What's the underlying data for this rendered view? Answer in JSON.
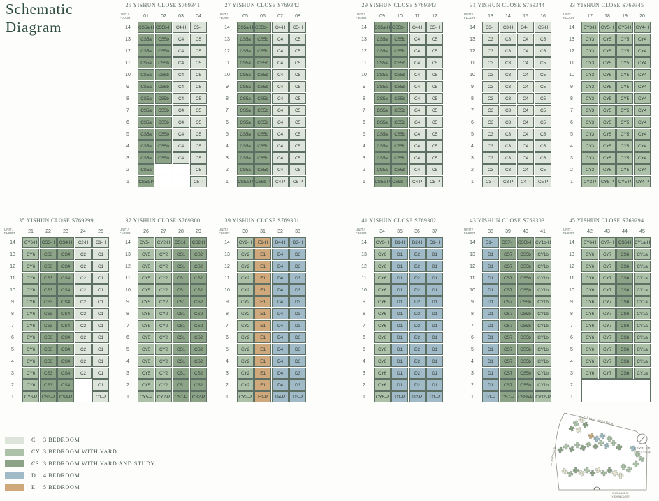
{
  "title": {
    "line1": "Schematic",
    "line2": "Diagram"
  },
  "unit_floor_label": [
    "UNIT /",
    "FLOOR"
  ],
  "floors": [
    "14",
    "13",
    "12",
    "11",
    "10",
    "9",
    "8",
    "7",
    "6",
    "5",
    "4",
    "3",
    "2",
    "1"
  ],
  "palette": {
    "c": "#dde5da",
    "cy": "#adc1a9",
    "cs": "#8da388",
    "d": "#a0bac8",
    "e": "#cfa87c"
  },
  "blocks": [
    {
      "address": "25 YISHUN CLOSE S769341",
      "units": [
        "01",
        "02",
        "03",
        "04"
      ],
      "grid": [
        [
          "CS5a-H",
          "CS5b-H",
          "C4-H",
          "C5-H"
        ],
        [
          "CS5a",
          "CS5b",
          "C4",
          "C5"
        ],
        [
          "CS5a",
          "CS5b",
          "C4",
          "C5"
        ],
        [
          "CS5a",
          "CS5b",
          "C4",
          "C5"
        ],
        [
          "CS5a",
          "CS5b",
          "C4",
          "C5"
        ],
        [
          "CS5a",
          "CS5b",
          "C4",
          "C5"
        ],
        [
          "CS5a",
          "CS5b",
          "C4",
          "C5"
        ],
        [
          "CS5a",
          "CS5b",
          "C4",
          "C5"
        ],
        [
          "CS5a",
          "CS5b",
          "C4",
          "C5"
        ],
        [
          "CS5a",
          "CS5b",
          "C4",
          "C5"
        ],
        [
          "CS5a",
          "CS5b",
          "C4",
          "C5"
        ],
        [
          "CS5a",
          "CS5b",
          "C4",
          "C5"
        ],
        [
          "CS5a",
          "",
          "",
          "C5"
        ],
        [
          "CS5a-P",
          "",
          "",
          "C5-P"
        ]
      ]
    },
    {
      "address": "27 YISHUN CLOSE S769342",
      "units": [
        "05",
        "06",
        "07",
        "08"
      ],
      "grid": [
        [
          "CS5a-H",
          "CS5b-H",
          "C4-H",
          "C5-H"
        ],
        [
          "CS5a",
          "CS5b",
          "C4",
          "C5"
        ],
        [
          "CS5a",
          "CS5b",
          "C4",
          "C5"
        ],
        [
          "CS5a",
          "CS5b",
          "C4",
          "C5"
        ],
        [
          "CS5a",
          "CS5b",
          "C4",
          "C5"
        ],
        [
          "CS5a",
          "CS5b",
          "C4",
          "C5"
        ],
        [
          "CS5a",
          "CS5b",
          "C4",
          "C5"
        ],
        [
          "CS5a",
          "CS5b",
          "C4",
          "C5"
        ],
        [
          "CS5a",
          "CS5b",
          "C4",
          "C5"
        ],
        [
          "CS5a",
          "CS5b",
          "C4",
          "C5"
        ],
        [
          "CS5a",
          "CS5b",
          "C4",
          "C5"
        ],
        [
          "CS5a",
          "CS5b",
          "C4",
          "C5"
        ],
        [
          "CS5a",
          "CS5b",
          "C4",
          "C5"
        ],
        [
          "CS5a-P",
          "CS5b-P",
          "C4-P",
          "C5-P"
        ]
      ]
    },
    {
      "address": "29 YISHUN CLOSE S769343",
      "units": [
        "09",
        "10",
        "11",
        "12"
      ],
      "grid": [
        [
          "CS5a-H",
          "CS5b-H",
          "C4-H",
          "C5-H"
        ],
        [
          "CS5a",
          "CS5b",
          "C4",
          "C5"
        ],
        [
          "CS5a",
          "CS5b",
          "C4",
          "C5"
        ],
        [
          "CS5a",
          "CS5b",
          "C4",
          "C5"
        ],
        [
          "CS5a",
          "CS5b",
          "C4",
          "C5"
        ],
        [
          "CS5a",
          "CS5b",
          "C4",
          "C5"
        ],
        [
          "CS5a",
          "CS5b",
          "C4",
          "C5"
        ],
        [
          "CS5a",
          "CS5b",
          "C4",
          "C5"
        ],
        [
          "CS5a",
          "CS5b",
          "C4",
          "C5"
        ],
        [
          "CS5a",
          "CS5b",
          "C4",
          "C5"
        ],
        [
          "CS5a",
          "CS5b",
          "C4",
          "C5"
        ],
        [
          "CS5a",
          "CS5b",
          "C4",
          "C5"
        ],
        [
          "CS5a",
          "CS5b",
          "C4",
          "C5"
        ],
        [
          "CS5a-P",
          "CS5b-P",
          "C4-P",
          "C5-P"
        ]
      ]
    },
    {
      "address": "31 YISHUN CLOSE S769344",
      "units": [
        "13",
        "14",
        "15",
        "16"
      ],
      "grid": [
        [
          "C3-H",
          "C3-H",
          "C4-H",
          "C5-H"
        ],
        [
          "C3",
          "C3",
          "C4",
          "C5"
        ],
        [
          "C3",
          "C3",
          "C4",
          "C5"
        ],
        [
          "C3",
          "C3",
          "C4",
          "C5"
        ],
        [
          "C3",
          "C3",
          "C4",
          "C5"
        ],
        [
          "C3",
          "C3",
          "C4",
          "C5"
        ],
        [
          "C3",
          "C3",
          "C4",
          "C5"
        ],
        [
          "C3",
          "C3",
          "C4",
          "C5"
        ],
        [
          "C3",
          "C3",
          "C4",
          "C5"
        ],
        [
          "C3",
          "C3",
          "C4",
          "C5"
        ],
        [
          "C3",
          "C3",
          "C4",
          "C5"
        ],
        [
          "C3",
          "C3",
          "C4",
          "C5"
        ],
        [
          "C3",
          "C3",
          "C4",
          "C5"
        ],
        [
          "C3-P",
          "C3-P",
          "C4-P",
          "C5-P"
        ]
      ]
    },
    {
      "address": "33 YISHUN CLOSE S769345",
      "units": [
        "17",
        "18",
        "19",
        "20"
      ],
      "grid": [
        [
          "CY3-H",
          "CY5-H",
          "CY5-H",
          "CY4-H"
        ],
        [
          "CY3",
          "CY5",
          "CY5",
          "CY4"
        ],
        [
          "CY3",
          "CY5",
          "CY5",
          "CY4"
        ],
        [
          "CY3",
          "CY5",
          "CY5",
          "CY4"
        ],
        [
          "CY3",
          "CY5",
          "CY5",
          "CY4"
        ],
        [
          "CY3",
          "CY5",
          "CY5",
          "CY4"
        ],
        [
          "CY3",
          "CY5",
          "CY5",
          "CY4"
        ],
        [
          "CY3",
          "CY5",
          "CY5",
          "CY4"
        ],
        [
          "CY3",
          "CY5",
          "CY5",
          "CY4"
        ],
        [
          "CY3",
          "CY5",
          "CY5",
          "CY4"
        ],
        [
          "CY3",
          "CY5",
          "CY5",
          "CY4"
        ],
        [
          "CY3",
          "CY5",
          "CY5",
          "CY4"
        ],
        [
          "CY3",
          "CY5",
          "CY5",
          "CY4"
        ],
        [
          "CY3-P",
          "CY5-P",
          "CY5-P",
          "CY4-P"
        ]
      ]
    },
    {
      "address": "35 YISHUN CLOSE S769299",
      "units": [
        "21",
        "22",
        "23",
        "24",
        "25"
      ],
      "grid": [
        [
          "CY6-H",
          "CS3-H",
          "CS4-H",
          "C2-H",
          "C1-H"
        ],
        [
          "CY6",
          "CS3",
          "CS4",
          "C2",
          "C1"
        ],
        [
          "CY6",
          "CS3",
          "CS4",
          "C2",
          "C1"
        ],
        [
          "CY6",
          "CS3",
          "CS4",
          "C2",
          "C1"
        ],
        [
          "CY6",
          "CS3",
          "CS4",
          "C2",
          "C1"
        ],
        [
          "CY6",
          "CS3",
          "CS4",
          "C2",
          "C1"
        ],
        [
          "CY6",
          "CS3",
          "CS4",
          "C2",
          "C1"
        ],
        [
          "CY6",
          "CS3",
          "CS4",
          "C2",
          "C1"
        ],
        [
          "CY6",
          "CS3",
          "CS4",
          "C2",
          "C1"
        ],
        [
          "CY6",
          "CS3",
          "CS4",
          "C2",
          "C1"
        ],
        [
          "CY6",
          "CS3",
          "CS4",
          "C2",
          "C1"
        ],
        [
          "CY6",
          "CS3",
          "CS4",
          "C2",
          "C1"
        ],
        [
          "CY6",
          "CS3",
          "CS4",
          "",
          "C1"
        ],
        [
          "CY6-P",
          "CS3-P",
          "CS4-P",
          "",
          "C1-P"
        ]
      ]
    },
    {
      "address": "37 YISHUN CLOSE S769300",
      "units": [
        "26",
        "27",
        "28",
        "29"
      ],
      "grid": [
        [
          "CY5-H",
          "CY2-H",
          "CS1-H",
          "CS2-H"
        ],
        [
          "CY5",
          "CY2",
          "CS1",
          "CS2"
        ],
        [
          "CY5",
          "CY2",
          "CS1",
          "CS2"
        ],
        [
          "CY5",
          "CY2",
          "CS1",
          "CS2"
        ],
        [
          "CY5",
          "CY2",
          "CS1",
          "CS2"
        ],
        [
          "CY5",
          "CY2",
          "CS1",
          "CS2"
        ],
        [
          "CY5",
          "CY2",
          "CS1",
          "CS2"
        ],
        [
          "CY5",
          "CY2",
          "CS1",
          "CS2"
        ],
        [
          "CY5",
          "CY2",
          "CS1",
          "CS2"
        ],
        [
          "CY5",
          "CY2",
          "CS1",
          "CS2"
        ],
        [
          "CY5",
          "CY2",
          "CS1",
          "CS2"
        ],
        [
          "CY5",
          "CY2",
          "CS1",
          "CS2"
        ],
        [
          "CY5",
          "CY2",
          "CS1",
          "CS2"
        ],
        [
          "CY5-P",
          "CY2-P",
          "CS1-P",
          "CS2-P"
        ]
      ]
    },
    {
      "address": "39 YISHUN CLOSE S769301",
      "units": [
        "30",
        "31",
        "32",
        "33"
      ],
      "grid": [
        [
          "CY2-H",
          "E1-H",
          "D4-H",
          "D3-H"
        ],
        [
          "CY2",
          "E1",
          "D4",
          "D3"
        ],
        [
          "CY2",
          "E1",
          "D4",
          "D3"
        ],
        [
          "CY2",
          "E1",
          "D4",
          "D3"
        ],
        [
          "CY2",
          "E1",
          "D4",
          "D3"
        ],
        [
          "CY2",
          "E1",
          "D4",
          "D3"
        ],
        [
          "CY2",
          "E1",
          "D4",
          "D3"
        ],
        [
          "CY2",
          "E1",
          "D4",
          "D3"
        ],
        [
          "CY2",
          "E1",
          "D4",
          "D3"
        ],
        [
          "CY2",
          "E1",
          "D4",
          "D3"
        ],
        [
          "CY2",
          "E1",
          "D4",
          "D3"
        ],
        [
          "CY2",
          "E1",
          "D4",
          "D3"
        ],
        [
          "CY2",
          "E1",
          "D4",
          "D3"
        ],
        [
          "CY2-P",
          "E1-P",
          "D4-P",
          "D3-P"
        ]
      ]
    },
    {
      "address": "41 YISHUN CLOSE S769302",
      "units": [
        "34",
        "35",
        "36",
        "37"
      ],
      "grid": [
        [
          "CY6-H",
          "D1-H",
          "D2-H",
          "D1-H"
        ],
        [
          "CY6",
          "D1",
          "D2",
          "D1"
        ],
        [
          "CY6",
          "D1",
          "D2",
          "D1"
        ],
        [
          "CY6",
          "D1",
          "D2",
          "D1"
        ],
        [
          "CY6",
          "D1",
          "D2",
          "D1"
        ],
        [
          "CY6",
          "D1",
          "D2",
          "D1"
        ],
        [
          "CY6",
          "D1",
          "D2",
          "D1"
        ],
        [
          "CY6",
          "D1",
          "D2",
          "D1"
        ],
        [
          "CY6",
          "D1",
          "D2",
          "D1"
        ],
        [
          "CY6",
          "D1",
          "D2",
          "D1"
        ],
        [
          "CY6",
          "D1",
          "D2",
          "D1"
        ],
        [
          "CY6",
          "D1",
          "D2",
          "D1"
        ],
        [
          "CY6",
          "D1",
          "D2",
          "D1"
        ],
        [
          "CY6-P",
          "D1-P",
          "D2-P",
          "D1-P"
        ]
      ]
    },
    {
      "address": "43 YISHUN CLOSE S769303",
      "units": [
        "38",
        "39",
        "40",
        "41"
      ],
      "grid": [
        [
          "D1-H",
          "CS7-H",
          "CS5b-H",
          "CY1b-H"
        ],
        [
          "D1",
          "CS7",
          "CS5b",
          "CY1b"
        ],
        [
          "D1",
          "CS7",
          "CS5b",
          "CY1b"
        ],
        [
          "D1",
          "CS7",
          "CS5b",
          "CY1b"
        ],
        [
          "D1",
          "CS7",
          "CS5b",
          "CY1b"
        ],
        [
          "D1",
          "CS7",
          "CS5b",
          "CY1b"
        ],
        [
          "D1",
          "CS7",
          "CS5b",
          "CY1b"
        ],
        [
          "D1",
          "CS7",
          "CS5b",
          "CY1b"
        ],
        [
          "D1",
          "CS7",
          "CS5b",
          "CY1b"
        ],
        [
          "D1",
          "CS7",
          "CS5b",
          "CY1b"
        ],
        [
          "D1",
          "CS7",
          "CS5b",
          "CY1b"
        ],
        [
          "D1",
          "CS7",
          "CS5b",
          "CY1b"
        ],
        [
          "D1",
          "CS7",
          "CS5b",
          "CY1b"
        ],
        [
          "D1-P",
          "CS7-P",
          "CS5b-P",
          "CY1b-P"
        ]
      ]
    },
    {
      "address": "45 YISHUN CLOSE S769294",
      "units": [
        "42",
        "43",
        "44",
        "45"
      ],
      "blank_box": true,
      "grid": [
        [
          "CY6-H",
          "CY7-H",
          "CS6-H",
          "CY1a-H"
        ],
        [
          "CY6",
          "CY7",
          "CS6",
          "CY1a"
        ],
        [
          "CY6",
          "CY7",
          "CS6",
          "CY1a"
        ],
        [
          "CY6",
          "CY7",
          "CS6",
          "CY1a"
        ],
        [
          "CY6",
          "CY7",
          "CS6",
          "CY1a"
        ],
        [
          "CY6",
          "CY7",
          "CS6",
          "CY1a"
        ],
        [
          "CY6",
          "CY7",
          "CS6",
          "CY1a"
        ],
        [
          "CY6",
          "CY7",
          "CS6",
          "CY1a"
        ],
        [
          "CY6",
          "CY7",
          "CS6",
          "CY1a"
        ],
        [
          "CY6",
          "CY7",
          "CS6",
          "CY1a"
        ],
        [
          "CY6",
          "CY7",
          "CS6",
          "CY1a"
        ],
        [
          "CY6",
          "CY7",
          "CS6",
          "CY1a"
        ],
        [
          "",
          "",
          "",
          ""
        ],
        [
          "",
          "",
          "",
          ""
        ]
      ]
    }
  ],
  "legend": {
    "items": [
      {
        "code": "C",
        "type": "c",
        "label": "3 BEDROOM"
      },
      {
        "code": "CY",
        "type": "cy",
        "label": "3 BEDROOM WITH YARD"
      },
      {
        "code": "CS",
        "type": "cs",
        "label": "3 BEDROOM WITH YARD AND STUDY"
      },
      {
        "code": "D",
        "type": "d",
        "label": "4 BEDROOM"
      },
      {
        "code": "E",
        "type": "e",
        "label": "5 BEDROOM"
      }
    ]
  },
  "keyplan": {
    "road_top": "YISHUN AVENUE 6",
    "road_left": "YISHUN AVENUE 9",
    "title": "KEYPLAN",
    "subtitle": "NOT TO SCALE",
    "entrance_line1": "ENTRANCE AT",
    "entrance_line2": "YISHUN CLOSE"
  }
}
